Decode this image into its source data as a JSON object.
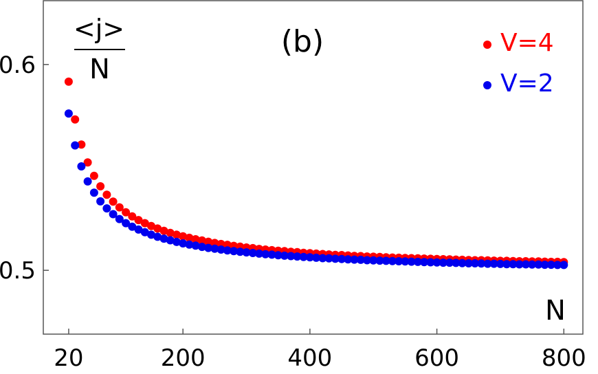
{
  "chart_data": {
    "type": "scatter",
    "panel_label": "(b)",
    "ylabel_numerator": "<j>",
    "ylabel_denominator": "N",
    "xlabel": "N",
    "xlim": [
      -20,
      830
    ],
    "ylim": [
      0.469,
      0.631
    ],
    "x_ticks": [
      20,
      200,
      400,
      600,
      800
    ],
    "x_tick_labels": [
      "20",
      "200",
      "400",
      "600",
      "800"
    ],
    "y_ticks": [
      0.5,
      0.6
    ],
    "y_tick_labels": [
      "0.5",
      "0.6"
    ],
    "legend_position": "top-right",
    "series": [
      {
        "name": "V=4",
        "color": "#ff0000",
        "x": [
          20,
          30,
          40,
          50,
          60,
          70,
          80,
          90,
          100,
          110,
          120,
          130,
          140,
          150,
          160,
          170,
          180,
          190,
          200,
          210,
          220,
          230,
          240,
          250,
          260,
          270,
          280,
          290,
          300,
          310,
          320,
          330,
          340,
          350,
          360,
          370,
          380,
          390,
          400,
          410,
          420,
          430,
          440,
          450,
          460,
          470,
          480,
          490,
          500,
          510,
          520,
          530,
          540,
          550,
          560,
          570,
          580,
          590,
          600,
          610,
          620,
          630,
          640,
          650,
          660,
          670,
          680,
          690,
          700,
          710,
          720,
          730,
          740,
          750,
          760,
          770,
          780,
          790,
          800
        ],
        "values": [
          0.5917,
          0.5733,
          0.5611,
          0.5524,
          0.5459,
          0.5408,
          0.5367,
          0.5334,
          0.5306,
          0.5282,
          0.5262,
          0.5244,
          0.5229,
          0.5215,
          0.5203,
          0.5192,
          0.5182,
          0.5173,
          0.5165,
          0.5158,
          0.5151,
          0.5145,
          0.5139,
          0.5133,
          0.5128,
          0.5124,
          0.5119,
          0.5115,
          0.5111,
          0.5108,
          0.5104,
          0.5101,
          0.5098,
          0.5095,
          0.5093,
          0.509,
          0.5088,
          0.5085,
          0.5083,
          0.5081,
          0.5079,
          0.5077,
          0.5075,
          0.5074,
          0.5072,
          0.507,
          0.5069,
          0.5067,
          0.5066,
          0.5065,
          0.5063,
          0.5062,
          0.5061,
          0.506,
          0.5059,
          0.5058,
          0.5057,
          0.5056,
          0.5055,
          0.5054,
          0.5053,
          0.5052,
          0.5051,
          0.505,
          0.5049,
          0.5049,
          0.5048,
          0.5047,
          0.5046,
          0.5046,
          0.5045,
          0.5044,
          0.5044,
          0.5043,
          0.5043,
          0.5042,
          0.5041,
          0.5041,
          0.504
        ]
      },
      {
        "name": "V=2",
        "color": "#0000ee",
        "x": [
          20,
          30,
          40,
          50,
          60,
          70,
          80,
          90,
          100,
          110,
          120,
          130,
          140,
          150,
          160,
          170,
          180,
          190,
          200,
          210,
          220,
          230,
          240,
          250,
          260,
          270,
          280,
          290,
          300,
          310,
          320,
          330,
          340,
          350,
          360,
          370,
          380,
          390,
          400,
          410,
          420,
          430,
          440,
          450,
          460,
          470,
          480,
          490,
          500,
          510,
          520,
          530,
          540,
          550,
          560,
          570,
          580,
          590,
          600,
          610,
          620,
          630,
          640,
          650,
          660,
          670,
          680,
          690,
          700,
          710,
          720,
          730,
          740,
          750,
          760,
          770,
          780,
          790,
          800
        ],
        "values": [
          0.5762,
          0.5607,
          0.5505,
          0.5432,
          0.5377,
          0.5335,
          0.5301,
          0.5273,
          0.5249,
          0.5229,
          0.5212,
          0.5198,
          0.5185,
          0.5173,
          0.5163,
          0.5154,
          0.5146,
          0.5138,
          0.5131,
          0.5125,
          0.512,
          0.5114,
          0.5109,
          0.5105,
          0.5101,
          0.5097,
          0.5093,
          0.509,
          0.5087,
          0.5084,
          0.5081,
          0.5078,
          0.5076,
          0.5073,
          0.5071,
          0.5069,
          0.5067,
          0.5065,
          0.5063,
          0.5061,
          0.5059,
          0.5058,
          0.5056,
          0.5055,
          0.5053,
          0.5052,
          0.5051,
          0.5049,
          0.5048,
          0.5047,
          0.5046,
          0.5045,
          0.5044,
          0.5043,
          0.5042,
          0.5041,
          0.504,
          0.5039,
          0.5038,
          0.5037,
          0.5037,
          0.5036,
          0.5035,
          0.5034,
          0.5034,
          0.5033,
          0.5032,
          0.5032,
          0.5031,
          0.503,
          0.503,
          0.5029,
          0.5029,
          0.5028,
          0.5028,
          0.5027,
          0.5027,
          0.5026,
          0.5026
        ]
      }
    ]
  }
}
